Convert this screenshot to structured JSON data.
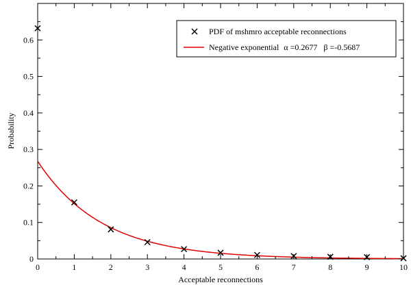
{
  "chart_data": {
    "type": "scatter",
    "title": "",
    "xlabel": "Acceptable reconnections",
    "ylabel": "Probability",
    "xlim": [
      0,
      10
    ],
    "ylim": [
      0,
      0.7
    ],
    "x_ticks": [
      "0",
      "1",
      "2",
      "3",
      "4",
      "5",
      "6",
      "7",
      "8",
      "9",
      "10"
    ],
    "y_ticks": [
      "0",
      "0.1",
      "0.2",
      "0.3",
      "0.4",
      "0.5",
      "0.6"
    ],
    "grid": false,
    "legend_position": "top-right",
    "series": [
      {
        "name": "PDF of mshmro acceptable reconnections",
        "type": "scatter",
        "marker": "x",
        "color": "#000000",
        "x": [
          0,
          1,
          2,
          3,
          4,
          5,
          6,
          7,
          8,
          9,
          10
        ],
        "y": [
          0.632,
          0.155,
          0.081,
          0.046,
          0.027,
          0.017,
          0.011,
          0.008,
          0.006,
          0.005,
          0.002
        ]
      },
      {
        "name": "Negative exponential",
        "type": "line",
        "color": "#e00000",
        "alpha": 0.2677,
        "beta": -0.5687
      }
    ],
    "legend_params": {
      "alpha_symbol": "α",
      "alpha_text": "=0.2677",
      "beta_symbol": "β",
      "beta_text": "=-0.5687"
    }
  }
}
